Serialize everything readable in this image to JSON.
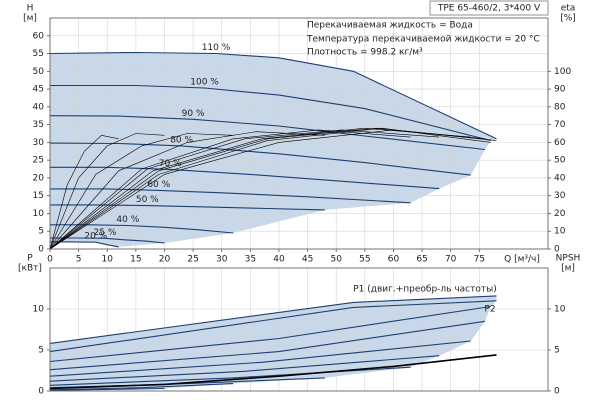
{
  "chart_data": [
    {
      "type": "line",
      "title": "TPE 65-460/2, 3*400 V",
      "annotations": [
        "Перекачиваемая жидкость = Вода",
        "Температура перекачиваемой жидкости = 20 °C",
        "Плотность = 998.2 кг/м³"
      ],
      "y_label": "H",
      "y_unit": "[м]",
      "y2_label": "eta",
      "y2_unit": "[%]",
      "x_label": "Q [м³/ч]",
      "xlim": [
        0,
        87
      ],
      "xticks": [
        0,
        5,
        10,
        15,
        20,
        25,
        30,
        35,
        40,
        45,
        50,
        55,
        60,
        65,
        70,
        75
      ],
      "ylim": [
        0,
        65
      ],
      "yticks": [
        0,
        5,
        10,
        15,
        20,
        25,
        30,
        35,
        40,
        45,
        50,
        55,
        60
      ],
      "y2lim": [
        0,
        130
      ],
      "y2ticks": [
        0,
        10,
        20,
        30,
        40,
        50,
        60,
        70,
        80,
        90,
        100
      ],
      "grid": true,
      "range_color": "#c9d8e8",
      "series": [
        {
          "name": "110 %",
          "color": "#1d3f73",
          "x": [
            0,
            15,
            29,
            40,
            53,
            78
          ],
          "values": [
            55,
            55.3,
            55,
            53.8,
            50,
            31
          ]
        },
        {
          "name": "100 %",
          "color": "#1d3f73",
          "x": [
            0,
            15,
            27,
            40,
            55,
            77
          ],
          "values": [
            46,
            46,
            45.3,
            43.3,
            39.5,
            30.5
          ]
        },
        {
          "name": "90 %",
          "color": "#1d3f73",
          "x": [
            0,
            12,
            25,
            40,
            55,
            76
          ],
          "values": [
            37.5,
            37.4,
            36.5,
            34.6,
            31.8,
            28
          ]
        },
        {
          "name": "80 %",
          "color": "#1d3f73",
          "x": [
            0,
            12,
            23,
            40,
            55,
            73.5
          ],
          "values": [
            29.8,
            29.7,
            29,
            26.8,
            24.3,
            20.8
          ]
        },
        {
          "name": "70 %",
          "color": "#1d3f73",
          "x": [
            0,
            10,
            21,
            35,
            50,
            68
          ],
          "values": [
            23,
            23,
            22.4,
            21,
            19.2,
            17
          ]
        },
        {
          "name": "60 %",
          "color": "#1d3f73",
          "x": [
            0,
            10,
            19,
            30,
            45,
            63
          ],
          "values": [
            16.9,
            16.9,
            16.5,
            15.8,
            14.7,
            13
          ]
        },
        {
          "name": "50 %",
          "color": "#1d3f73",
          "x": [
            0,
            8,
            17,
            28,
            38,
            48
          ],
          "values": [
            12.4,
            12.4,
            12.2,
            11.8,
            11.4,
            11
          ]
        },
        {
          "name": "40 %",
          "color": "#1d3f73",
          "x": [
            0,
            7,
            13.6,
            20,
            26,
            32
          ],
          "values": [
            6.8,
            6.8,
            6.6,
            6.1,
            5.4,
            4.5
          ]
        },
        {
          "name": "25 %",
          "color": "#1d3f73",
          "x": [
            0,
            5,
            9.6,
            13,
            17,
            20
          ],
          "values": [
            3.1,
            3.1,
            3,
            2.6,
            2.2,
            1.7
          ]
        },
        {
          "name": "20 %",
          "color": "#1d3f73",
          "x": [
            0,
            4,
            8,
            10,
            12
          ],
          "values": [
            2,
            2,
            1.9,
            1.2,
            0.6
          ]
        },
        {
          "axis": "y2",
          "color": "#000000",
          "x": [
            0,
            20,
            40,
            60,
            78
          ],
          "values": [
            0,
            42,
            60,
            67,
            61
          ]
        },
        {
          "axis": "y2",
          "color": "#000000",
          "x": [
            0,
            19,
            38,
            58,
            77
          ],
          "values": [
            0,
            42,
            61,
            68,
            60
          ]
        },
        {
          "axis": "y2",
          "color": "#000000",
          "x": [
            0,
            19,
            38,
            57,
            76
          ],
          "values": [
            0,
            44,
            62,
            68,
            62
          ]
        },
        {
          "axis": "y2",
          "color": "#000000",
          "x": [
            0,
            18,
            37,
            55,
            73.5
          ],
          "values": [
            0,
            44,
            62,
            68,
            63
          ]
        },
        {
          "axis": "y2",
          "color": "#000000",
          "x": [
            0,
            17,
            34,
            51,
            68
          ],
          "values": [
            0,
            45,
            62,
            67,
            63
          ]
        },
        {
          "axis": "y2",
          "color": "#000000",
          "x": [
            0,
            16,
            32,
            47,
            63
          ],
          "values": [
            0,
            45,
            62,
            67,
            63
          ]
        },
        {
          "axis": "y2",
          "color": "#000000",
          "x": [
            0,
            12,
            24,
            36,
            48
          ],
          "values": [
            0,
            44,
            60,
            66,
            64
          ]
        },
        {
          "axis": "y2",
          "color": "#000000",
          "x": [
            0,
            8,
            16,
            24,
            32
          ],
          "values": [
            0,
            42,
            58,
            65,
            64
          ]
        },
        {
          "axis": "y2",
          "color": "#000000",
          "x": [
            0,
            5,
            10,
            15,
            20
          ],
          "values": [
            0,
            40,
            58,
            65,
            64
          ]
        },
        {
          "axis": "y2",
          "color": "#000000",
          "x": [
            0,
            3,
            6,
            9,
            12
          ],
          "values": [
            0,
            36,
            55,
            64,
            62
          ]
        }
      ]
    },
    {
      "type": "line",
      "y_label": "P",
      "y_unit": "[кВт]",
      "y2_label": "NPSH",
      "y2_unit": "[м]",
      "annotations": [
        "P1 (двиг.+преобр-ль частоты)",
        "P2"
      ],
      "xlim": [
        0,
        87
      ],
      "ylim": [
        0,
        15
      ],
      "yticks": [
        0,
        5,
        10
      ],
      "y2lim": [
        0,
        15
      ],
      "y2ticks": [
        0,
        5,
        10
      ],
      "grid": true,
      "range_color": "#c9d8e8",
      "series": [
        {
          "color": "#1d3f73",
          "x": [
            0,
            53,
            78
          ],
          "values": [
            5.8,
            10.8,
            11.6
          ]
        },
        {
          "color": "#1d3f73",
          "x": [
            0,
            53,
            78
          ],
          "values": [
            4.8,
            10.2,
            11
          ]
        },
        {
          "color": "#1d3f73",
          "x": [
            0,
            40,
            77
          ],
          "values": [
            3.6,
            6.4,
            10.3
          ]
        },
        {
          "color": "#1d3f73",
          "x": [
            0,
            40,
            76
          ],
          "values": [
            2.6,
            4.8,
            8.5
          ]
        },
        {
          "color": "#1d3f73",
          "x": [
            0,
            37,
            73.5
          ],
          "values": [
            1.8,
            3.5,
            6.1
          ]
        },
        {
          "color": "#1d3f73",
          "x": [
            0,
            34,
            68
          ],
          "values": [
            1.2,
            2.4,
            4.3
          ]
        },
        {
          "color": "#1d3f73",
          "x": [
            0,
            32,
            63
          ],
          "values": [
            0.7,
            1.6,
            2.9
          ]
        },
        {
          "color": "#1d3f73",
          "x": [
            0,
            24,
            48
          ],
          "values": [
            0.4,
            0.9,
            1.6
          ]
        },
        {
          "color": "#1d3f73",
          "x": [
            0,
            16,
            32
          ],
          "values": [
            0.15,
            0.4,
            0.9
          ]
        },
        {
          "color": "#1d3f73",
          "x": [
            0,
            10,
            20
          ],
          "values": [
            0.1,
            0.2,
            0.3
          ]
        },
        {
          "axis": "y2",
          "color": "#000000",
          "x": [
            0,
            20,
            40,
            60,
            78
          ],
          "values": [
            0.3,
            0.8,
            1.8,
            3,
            4.4
          ]
        }
      ]
    }
  ]
}
